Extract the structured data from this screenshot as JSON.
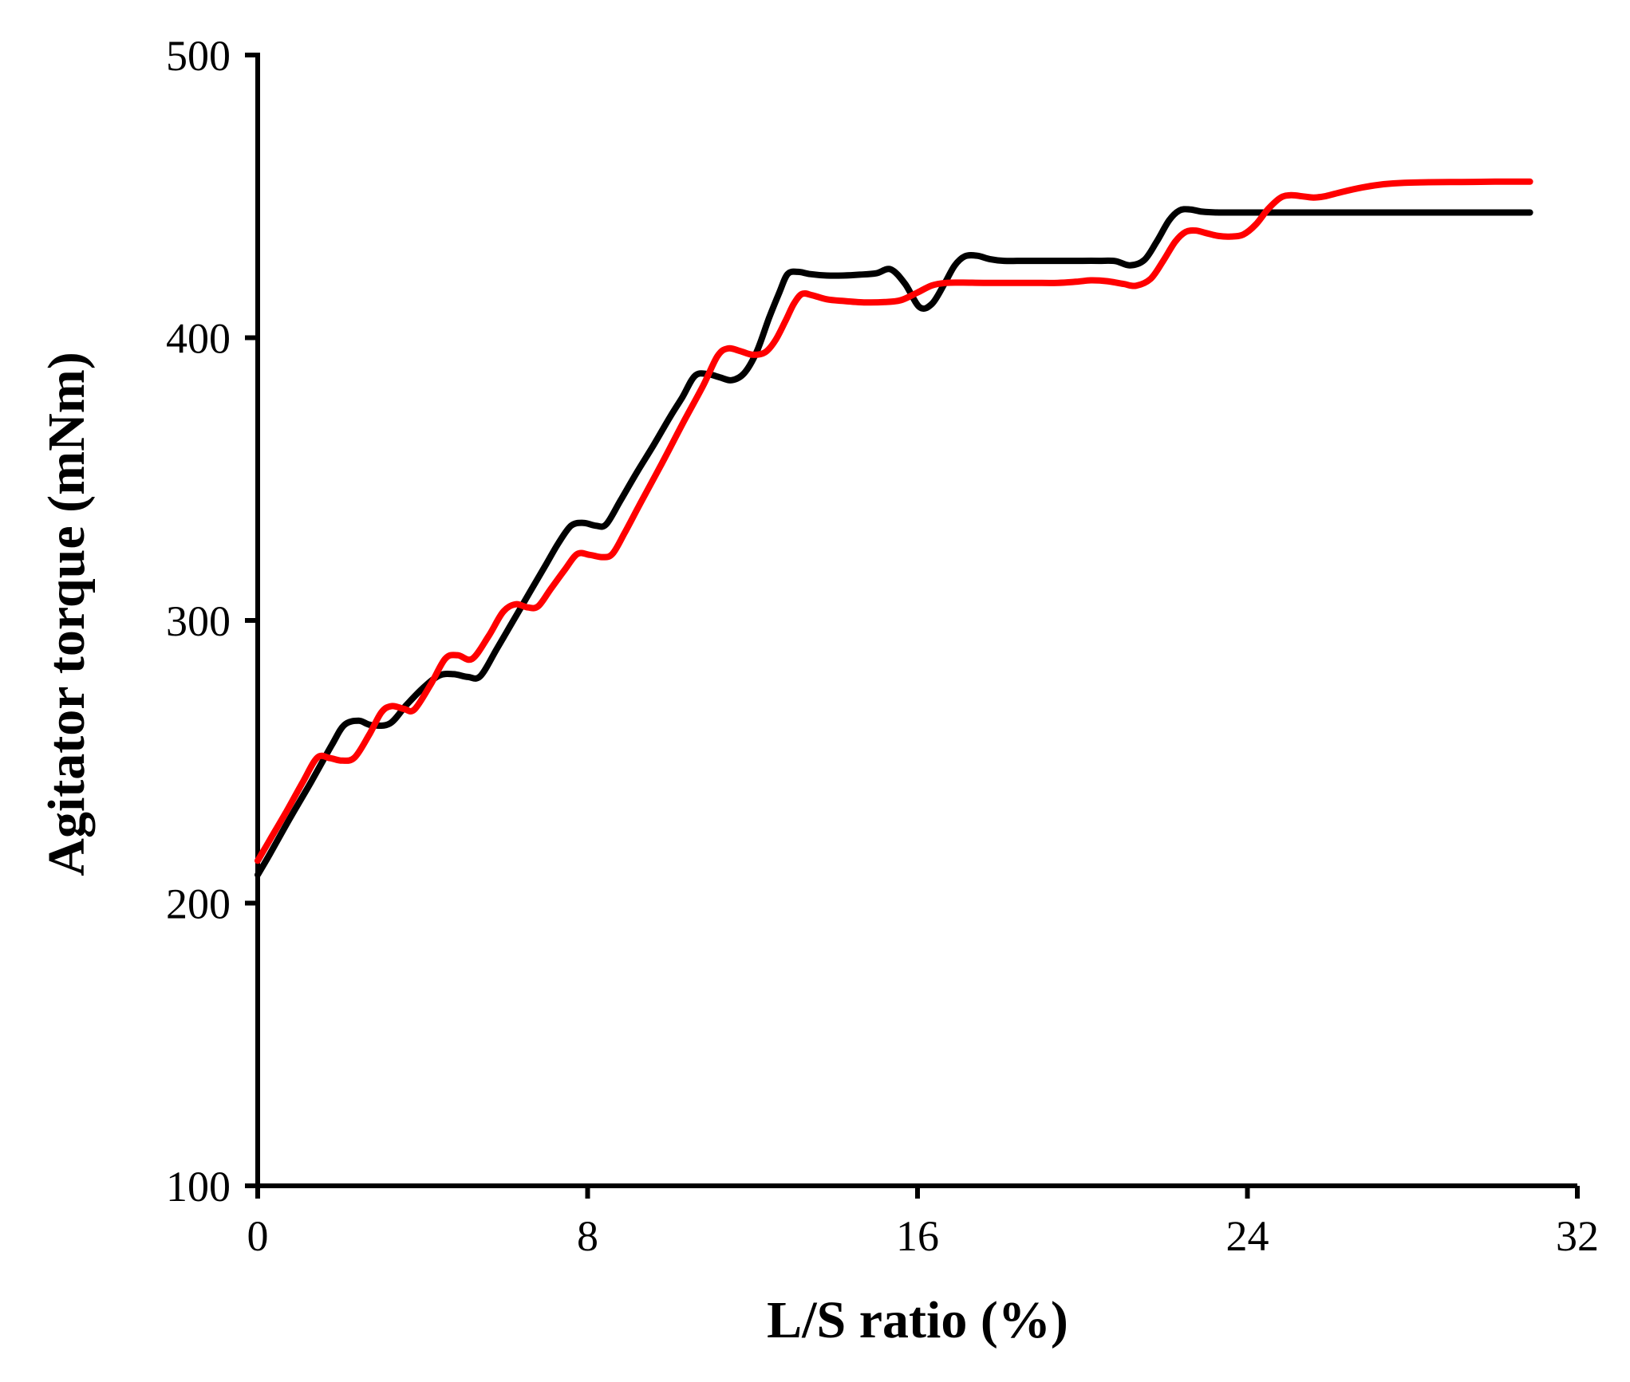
{
  "chart_data": {
    "type": "line",
    "title": "",
    "xlabel": "L/S ratio (%)",
    "ylabel": "Agitator torque (mNm)",
    "xlim": [
      0,
      32
    ],
    "ylim": [
      100,
      500
    ],
    "x_ticks": [
      0,
      8,
      16,
      24,
      32
    ],
    "y_ticks": [
      100,
      200,
      300,
      400,
      500
    ],
    "grid": false,
    "legend_position": "none",
    "background_color": "#ffffff",
    "axis_color": "#000000",
    "series": [
      {
        "name": "black-curve",
        "color": "#000000",
        "points": [
          [
            0,
            210
          ],
          [
            0.3,
            217.5
          ],
          [
            0.8,
            230.5
          ],
          [
            1.3,
            243
          ],
          [
            1.8,
            256
          ],
          [
            2.1,
            263
          ],
          [
            2.45,
            264.5
          ],
          [
            2.75,
            263
          ],
          [
            3.2,
            263.5
          ],
          [
            3.6,
            270
          ],
          [
            4.0,
            276
          ],
          [
            4.4,
            280.5
          ],
          [
            4.75,
            281
          ],
          [
            5.1,
            280
          ],
          [
            5.4,
            280.3
          ],
          [
            5.8,
            290
          ],
          [
            6.2,
            300
          ],
          [
            6.6,
            310
          ],
          [
            7.0,
            320
          ],
          [
            7.3,
            327.5
          ],
          [
            7.6,
            333.5
          ],
          [
            7.9,
            334.5
          ],
          [
            8.2,
            333.5
          ],
          [
            8.45,
            334
          ],
          [
            8.8,
            342.5
          ],
          [
            9.2,
            352.5
          ],
          [
            9.6,
            362
          ],
          [
            10.0,
            372
          ],
          [
            10.3,
            379
          ],
          [
            10.6,
            386.5
          ],
          [
            10.9,
            387.2
          ],
          [
            11.2,
            386
          ],
          [
            11.5,
            385
          ],
          [
            11.8,
            387.5
          ],
          [
            12.1,
            395
          ],
          [
            12.4,
            407
          ],
          [
            12.65,
            416
          ],
          [
            12.85,
            422.5
          ],
          [
            13.1,
            423.3
          ],
          [
            13.4,
            422.5
          ],
          [
            13.8,
            422
          ],
          [
            14.2,
            422
          ],
          [
            14.6,
            422.3
          ],
          [
            15.0,
            422.8
          ],
          [
            15.35,
            424.2
          ],
          [
            15.7,
            419
          ],
          [
            16.05,
            410.8
          ],
          [
            16.35,
            412
          ],
          [
            16.65,
            419
          ],
          [
            16.9,
            425.5
          ],
          [
            17.15,
            428.8
          ],
          [
            17.45,
            429
          ],
          [
            17.75,
            427.8
          ],
          [
            18.1,
            427.2
          ],
          [
            18.6,
            427.2
          ],
          [
            19.2,
            427.2
          ],
          [
            19.8,
            427.2
          ],
          [
            20.4,
            427.2
          ],
          [
            20.8,
            427.1
          ],
          [
            21.15,
            425.6
          ],
          [
            21.5,
            427.5
          ],
          [
            21.8,
            434
          ],
          [
            22.1,
            441.5
          ],
          [
            22.35,
            445
          ],
          [
            22.6,
            445.4
          ],
          [
            22.9,
            444.6
          ],
          [
            23.3,
            444.3
          ],
          [
            24.0,
            444.3
          ],
          [
            25.0,
            444.3
          ],
          [
            26.0,
            444.3
          ],
          [
            27.0,
            444.3
          ],
          [
            28.0,
            444.3
          ],
          [
            29.0,
            444.3
          ],
          [
            30.0,
            444.3
          ],
          [
            30.85,
            444.3
          ]
        ]
      },
      {
        "name": "red-curve",
        "color": "#ff0000",
        "points": [
          [
            0,
            215
          ],
          [
            0.3,
            222.5
          ],
          [
            0.7,
            232.5
          ],
          [
            1.1,
            243
          ],
          [
            1.45,
            251.5
          ],
          [
            1.75,
            251.3
          ],
          [
            2.05,
            250.4
          ],
          [
            2.35,
            251.5
          ],
          [
            2.7,
            259.5
          ],
          [
            3.0,
            267.5
          ],
          [
            3.25,
            269.7
          ],
          [
            3.55,
            268.7
          ],
          [
            3.8,
            268.5
          ],
          [
            4.2,
            277.5
          ],
          [
            4.55,
            286.5
          ],
          [
            4.85,
            287.7
          ],
          [
            5.2,
            286.4
          ],
          [
            5.6,
            294.5
          ],
          [
            5.95,
            303
          ],
          [
            6.25,
            305.7
          ],
          [
            6.55,
            304.6
          ],
          [
            6.8,
            305
          ],
          [
            7.1,
            311
          ],
          [
            7.45,
            318
          ],
          [
            7.75,
            323.5
          ],
          [
            8.05,
            323.2
          ],
          [
            8.35,
            322.4
          ],
          [
            8.6,
            323.5
          ],
          [
            8.9,
            331
          ],
          [
            9.3,
            342
          ],
          [
            9.8,
            355.5
          ],
          [
            10.3,
            369.5
          ],
          [
            10.8,
            383
          ],
          [
            11.15,
            393.5
          ],
          [
            11.4,
            396.2
          ],
          [
            11.7,
            395.3
          ],
          [
            12.0,
            394
          ],
          [
            12.3,
            394.8
          ],
          [
            12.55,
            399
          ],
          [
            12.8,
            406
          ],
          [
            13.0,
            412
          ],
          [
            13.2,
            415.5
          ],
          [
            13.45,
            415
          ],
          [
            13.8,
            413.6
          ],
          [
            14.2,
            413
          ],
          [
            14.7,
            412.5
          ],
          [
            15.2,
            412.6
          ],
          [
            15.6,
            413.3
          ],
          [
            16.0,
            416
          ],
          [
            16.35,
            418.5
          ],
          [
            16.7,
            419.4
          ],
          [
            17.1,
            419.5
          ],
          [
            17.6,
            419.4
          ],
          [
            18.2,
            419.4
          ],
          [
            18.8,
            419.4
          ],
          [
            19.4,
            419.4
          ],
          [
            19.85,
            419.8
          ],
          [
            20.2,
            420.3
          ],
          [
            20.6,
            420
          ],
          [
            21.0,
            419
          ],
          [
            21.3,
            418.4
          ],
          [
            21.65,
            420.8
          ],
          [
            21.95,
            427
          ],
          [
            22.25,
            434
          ],
          [
            22.5,
            437.4
          ],
          [
            22.75,
            437.9
          ],
          [
            23.0,
            437
          ],
          [
            23.3,
            436
          ],
          [
            23.6,
            435.8
          ],
          [
            23.9,
            436.5
          ],
          [
            24.2,
            440
          ],
          [
            24.5,
            445.5
          ],
          [
            24.8,
            449.5
          ],
          [
            25.05,
            450.4
          ],
          [
            25.35,
            450
          ],
          [
            25.6,
            449.6
          ],
          [
            25.9,
            450.1
          ],
          [
            26.3,
            451.6
          ],
          [
            26.8,
            453.2
          ],
          [
            27.3,
            454.3
          ],
          [
            27.8,
            454.8
          ],
          [
            28.4,
            455
          ],
          [
            29.2,
            455.1
          ],
          [
            30.0,
            455.2
          ],
          [
            30.85,
            455.2
          ]
        ]
      }
    ]
  }
}
